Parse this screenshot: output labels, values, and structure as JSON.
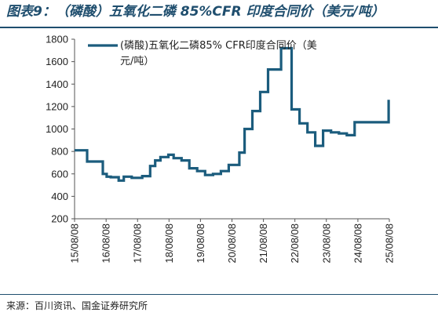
{
  "figure": {
    "title": "图表9：（磷酸）五氧化二磷 85%CFR 印度合同价（美元/吨）",
    "source_label": "来源：",
    "source_text": "百川资讯、国金证券研究所"
  },
  "chart_data": {
    "type": "line",
    "step": true,
    "title": "",
    "xlabel": "",
    "ylabel": "",
    "ylim": [
      200,
      1800
    ],
    "yticks": [
      200,
      400,
      600,
      800,
      1000,
      1200,
      1400,
      1600,
      1800
    ],
    "xlim": [
      "2015-08-08",
      "2025-08-08"
    ],
    "xticks": [
      "15/08/08",
      "16/08/08",
      "17/08/08",
      "18/08/08",
      "19/08/08",
      "20/08/08",
      "21/08/08",
      "22/08/08",
      "23/08/08",
      "24/08/08",
      "25/08/08"
    ],
    "legend_position": "top-left",
    "grid": false,
    "colors": {
      "series": "#1b5c7d",
      "axis": "#555555",
      "title": "#1f4e6e"
    },
    "series": [
      {
        "name": "(磷酸)五氧化二磷85% CFR印度合同价（美元/吨）",
        "x": [
          "2015-08-08",
          "2016-01-01",
          "2016-07-01",
          "2016-08-15",
          "2016-10-01",
          "2017-01-01",
          "2017-03-01",
          "2017-06-01",
          "2017-09-01",
          "2017-10-01",
          "2018-01-01",
          "2018-02-01",
          "2018-03-01",
          "2018-05-01",
          "2018-08-01",
          "2018-10-01",
          "2019-01-01",
          "2019-04-01",
          "2019-07-01",
          "2019-10-01",
          "2019-11-01",
          "2020-01-01",
          "2020-04-01",
          "2020-07-01",
          "2020-09-01",
          "2020-11-01",
          "2021-01-01",
          "2021-04-01",
          "2021-07-01",
          "2021-10-01",
          "2022-01-01",
          "2022-03-01",
          "2022-04-01",
          "2022-07-01",
          "2022-10-01",
          "2023-01-01",
          "2023-02-01",
          "2023-04-01",
          "2023-07-01",
          "2023-10-01",
          "2024-01-01",
          "2024-04-01",
          "2024-07-01",
          "2024-10-01",
          "2025-01-01",
          "2025-04-01",
          "2025-07-01",
          "2025-07-31"
        ],
        "values": [
          810,
          710,
          600,
          575,
          570,
          540,
          575,
          565,
          565,
          580,
          670,
          670,
          720,
          750,
          770,
          740,
          720,
          650,
          625,
          590,
          590,
          600,
          625,
          680,
          680,
          790,
          1000,
          1160,
          1330,
          1530,
          1530,
          1720,
          1720,
          1175,
          1050,
          970,
          970,
          850,
          985,
          970,
          960,
          945,
          1060,
          1060,
          1060,
          1060,
          1060,
          1260
        ]
      }
    ]
  }
}
